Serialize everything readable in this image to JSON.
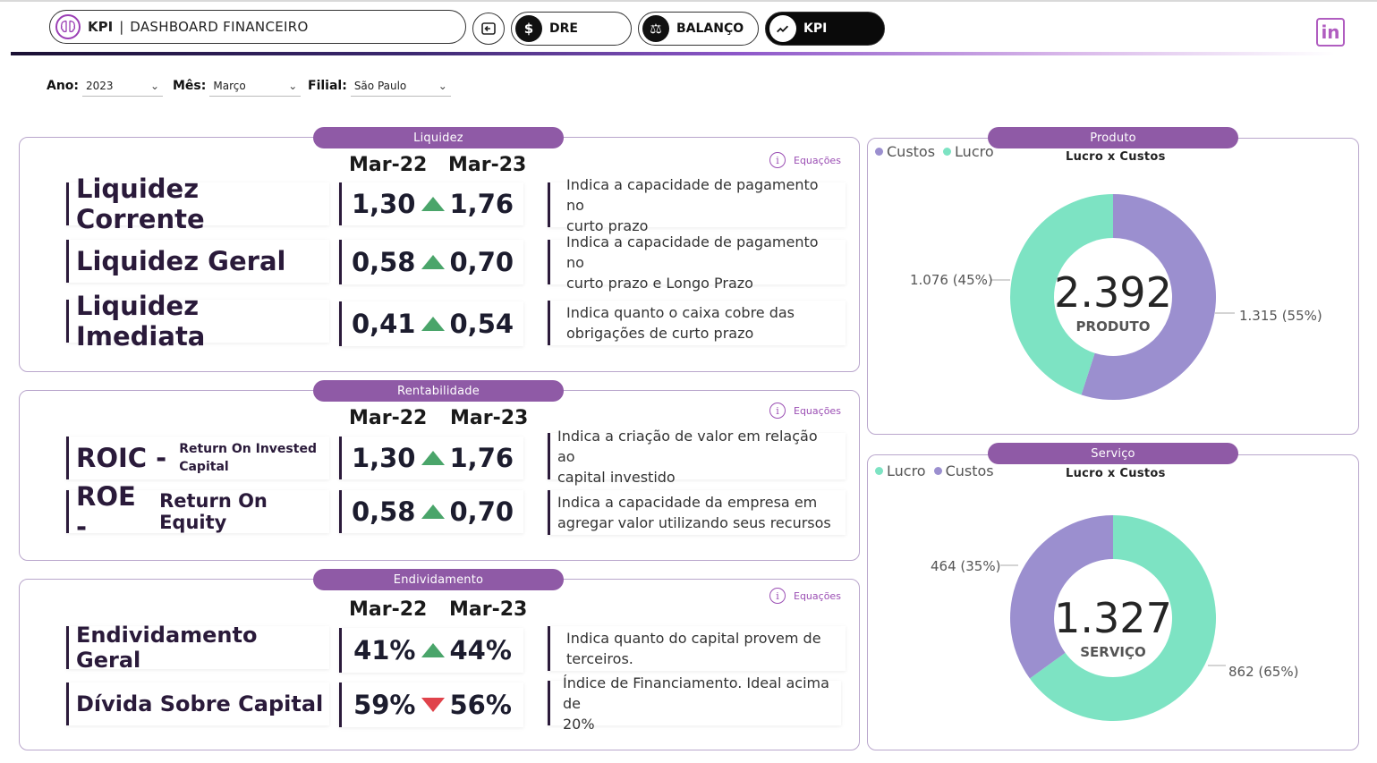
{
  "nav": {
    "kpi": "KPI",
    "sep": "|",
    "title": "DASHBOARD FINANCEIRO",
    "dre_label": "DRE",
    "balanco_label": "BALANÇO",
    "kpi_label": "KPI",
    "linkedin_label": "in"
  },
  "filters": {
    "ano": {
      "label": "Ano:",
      "value": "2023"
    },
    "mes": {
      "label": "Mês:",
      "value": "Março"
    },
    "filial": {
      "label": "Filial:",
      "value": "São Paulo"
    }
  },
  "equacoes_label": "Equações",
  "col_prev": "Mar-22",
  "col_curr": "Mar-23",
  "liquidez": {
    "title": "Liquidez",
    "rows": [
      {
        "name": "Liquidez Corrente",
        "prev": "1,30",
        "curr": "1,76",
        "trend": "up",
        "desc_1": "Indica a capacidade de pagamento no",
        "desc_2": "curto prazo"
      },
      {
        "name": "Liquidez Geral",
        "prev": "0,58",
        "curr": "0,70",
        "trend": "up",
        "desc_1": "Indica a capacidade de pagamento no",
        "desc_2": "curto prazo e Longo Prazo"
      },
      {
        "name": "Liquidez Imediata",
        "prev": "0,41",
        "curr": "0,54",
        "trend": "up",
        "desc_1": "Indica quanto o caixa cobre das",
        "desc_2": "obrigações de curto prazo"
      }
    ]
  },
  "rentabilidade": {
    "title": "Rentabilidade",
    "roic": {
      "name": "ROIC -",
      "sub_1": "Return On Invested",
      "sub_2": "Capital",
      "prev": "1,30",
      "curr": "1,76",
      "trend": "up",
      "desc_1": "Indica a criação de valor em relação ao",
      "desc_2": "capital investido"
    },
    "roe": {
      "name": "ROE -",
      "sub": "Return On Equity",
      "prev": "0,58",
      "curr": "0,70",
      "trend": "up",
      "desc_1": "Indica a capacidade da empresa em",
      "desc_2": "agregar valor utilizando seus recursos"
    }
  },
  "endividamento": {
    "title": "Endividamento",
    "rows": [
      {
        "name": "Endividamento Geral",
        "prev": "41%",
        "curr": "44%",
        "trend": "up",
        "desc_1": "Indica quanto do capital provem de",
        "desc_2": "terceiros."
      },
      {
        "name": "Dívida Sobre Capital",
        "prev": "59%",
        "curr": "56%",
        "trend": "down",
        "desc_1": "Índice de Financiamento. Ideal acima de",
        "desc_2": "20%"
      }
    ]
  },
  "colors": {
    "purple_tab": "#8f5aa6",
    "custos": "#9b8fcf",
    "lucro": "#7de3c3",
    "up": "#4aa56a",
    "down": "#e0434b"
  },
  "chart_data": [
    {
      "type": "pie",
      "title": "Produto",
      "subtitle": "Lucro x Custos",
      "legend": [
        "Custos",
        "Lucro"
      ],
      "legend_position": "top-left",
      "center_value": "2.392",
      "center_label": "PRODUTO",
      "slices": [
        {
          "name": "Custos",
          "value": 1315,
          "label": "1.315 (55%)",
          "color": "#9b8fcf"
        },
        {
          "name": "Lucro",
          "value": 1076,
          "label": "1.076 (45%)",
          "color": "#7de3c3"
        }
      ]
    },
    {
      "type": "pie",
      "title": "Serviço",
      "subtitle": "Lucro x Custos",
      "legend": [
        "Lucro",
        "Custos"
      ],
      "legend_position": "top-left",
      "center_value": "1.327",
      "center_label": "SERVIÇO",
      "slices": [
        {
          "name": "Lucro",
          "value": 862,
          "label": "862 (65%)",
          "color": "#7de3c3"
        },
        {
          "name": "Custos",
          "value": 464,
          "label": "464 (35%)",
          "color": "#9b8fcf"
        }
      ]
    }
  ]
}
